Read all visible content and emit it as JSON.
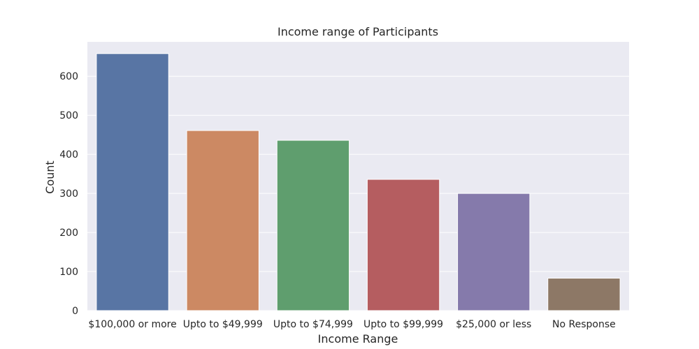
{
  "chart_data": {
    "type": "bar",
    "title": "Income range of Participants",
    "xlabel": "Income Range",
    "ylabel": "Count",
    "categories": [
      "$100,000 or more",
      "Upto to $49,999",
      "Upto to $74,999",
      "Upto to $99,999",
      "$25,000 or less",
      "No Response"
    ],
    "values": [
      658,
      461,
      436,
      336,
      300,
      83
    ],
    "ylim": [
      0,
      688
    ],
    "yticks": [
      0,
      100,
      200,
      300,
      400,
      500,
      600
    ],
    "grid": true,
    "colors": [
      "#5875a4",
      "#cc8963",
      "#5f9e6e",
      "#b55d60",
      "#857aab",
      "#8d7866"
    ],
    "background": "#eaeaf2"
  }
}
